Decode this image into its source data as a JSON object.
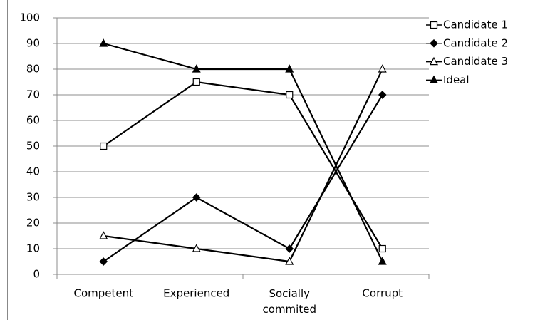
{
  "chart_data": {
    "type": "line",
    "categories": [
      "Competent",
      "Experienced",
      "Socially commited",
      "Corrupt"
    ],
    "series": [
      {
        "name": "Candidate 1",
        "color": "#000000",
        "marker": "square-open",
        "values": [
          50,
          75,
          70,
          10
        ]
      },
      {
        "name": "Candidate 2",
        "color": "#000000",
        "marker": "diamond",
        "values": [
          5,
          30,
          10,
          70
        ]
      },
      {
        "name": "Candidate 3",
        "color": "#000000",
        "marker": "triangle-open",
        "values": [
          15,
          10,
          5,
          80
        ]
      },
      {
        "name": "Ideal",
        "color": "#000000",
        "marker": "triangle",
        "values": [
          90,
          80,
          80,
          5
        ]
      }
    ],
    "ylim": [
      0,
      100
    ],
    "yticks": [
      0,
      10,
      20,
      30,
      40,
      50,
      60,
      70,
      80,
      90,
      100
    ],
    "grid": true,
    "legend": "right"
  }
}
